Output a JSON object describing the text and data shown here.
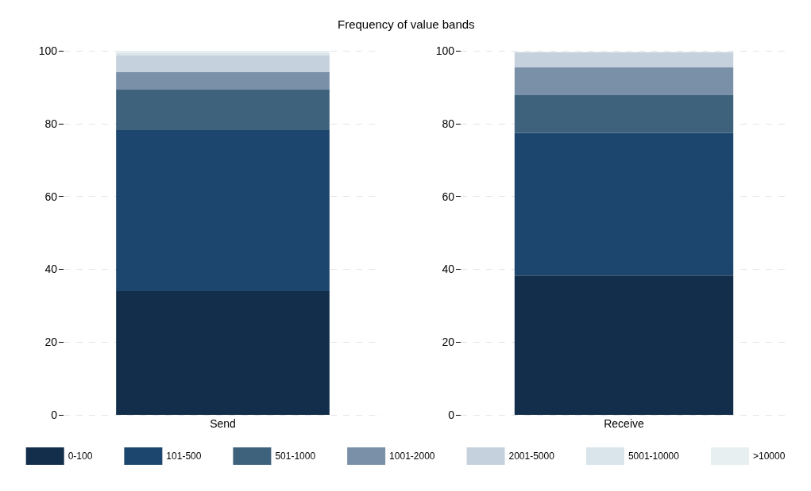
{
  "chart_data": [
    {
      "type": "bar",
      "categories": [
        "Send"
      ],
      "stacked": true,
      "ylim": [
        0,
        100
      ],
      "yticks": [
        0,
        20,
        40,
        60,
        80,
        100
      ],
      "grid": "y",
      "legend": "bottom",
      "series": [
        {
          "name": "0-100",
          "color": "#132e4a",
          "values": [
            34.0
          ]
        },
        {
          "name": "101-500",
          "color": "#1c466e",
          "values": [
            44.2
          ]
        },
        {
          "name": "501-1000",
          "color": "#3e627c",
          "values": [
            11.1
          ]
        },
        {
          "name": "1001-2000",
          "color": "#7a90a8",
          "values": [
            4.8
          ]
        },
        {
          "name": "2001-5000",
          "color": "#c5d1dc",
          "values": [
            4.6
          ]
        },
        {
          "name": "5001-10000",
          "color": "#d9e4eb",
          "values": [
            0.7
          ]
        },
        {
          "name": ">10000",
          "color": "#e7eff1",
          "values": [
            0.6
          ]
        }
      ]
    },
    {
      "type": "bar",
      "title": "Frequency of value bands",
      "categories": [
        "Receive"
      ],
      "stacked": true,
      "ylim": [
        0,
        100
      ],
      "yticks": [
        0,
        20,
        40,
        60,
        80,
        100
      ],
      "grid": "y",
      "series": [
        {
          "color": "#132e4a",
          "values": [
            38.3
          ]
        },
        {
          "color": "#1c466e",
          "values": [
            39.1
          ]
        },
        {
          "color": "#3e627c",
          "values": [
            10.4
          ]
        },
        {
          "color": "#7a90a8",
          "values": [
            7.6
          ]
        },
        {
          "color": "#c5d1dc",
          "values": [
            4.2
          ]
        },
        {
          "color": "#d9e4eb",
          "values": [
            null
          ]
        },
        {
          "color": "#e7eff1",
          "values": [
            null
          ]
        }
      ]
    }
  ]
}
